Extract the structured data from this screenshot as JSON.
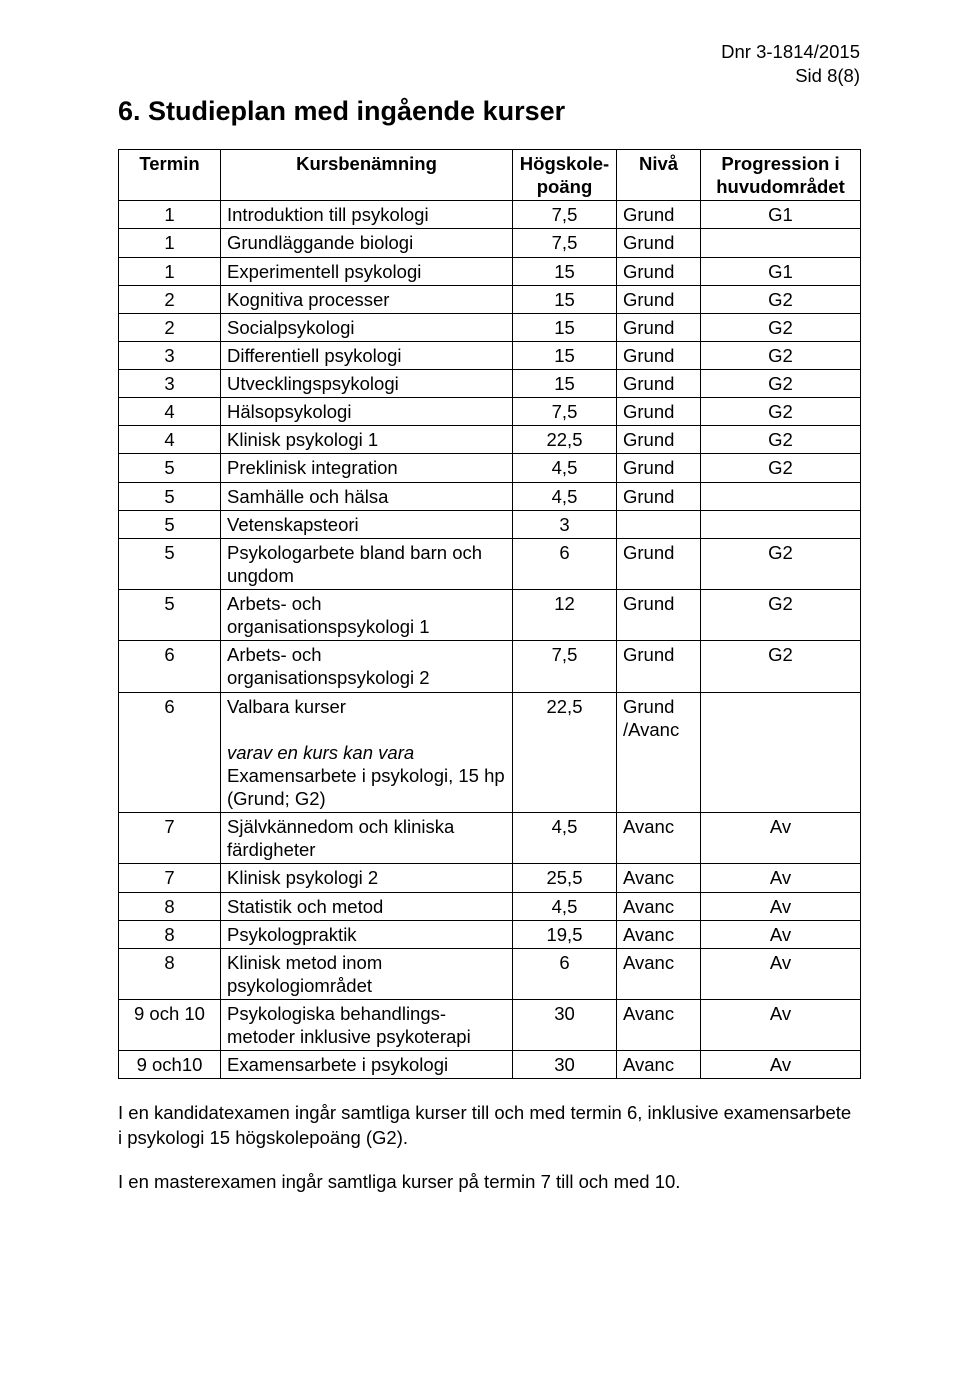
{
  "header": {
    "dnr": "Dnr 3-1814/2015",
    "page": "Sid 8(8)"
  },
  "heading": "6. Studieplan med ingående kurser",
  "table": {
    "columns": {
      "termin": "Termin",
      "kurs": "Kursbenämning",
      "hp_l1": "Högskole-",
      "hp_l2": "poäng",
      "niva": "Nivå",
      "prog_l1": "Progression i",
      "prog_l2": "huvudområdet"
    },
    "rows": [
      {
        "t": "1",
        "k": "Introduktion till psykologi",
        "hp": "7,5",
        "n": "Grund",
        "p": "G1"
      },
      {
        "t": "1",
        "k": "Grundläggande biologi",
        "hp": "7,5",
        "n": "Grund",
        "p": ""
      },
      {
        "t": "1",
        "k": "Experimentell psykologi",
        "hp": "15",
        "n": "Grund",
        "p": "G1"
      },
      {
        "t": "2",
        "k": "Kognitiva processer",
        "hp": "15",
        "n": "Grund",
        "p": "G2"
      },
      {
        "t": "2",
        "k": "Socialpsykologi",
        "hp": "15",
        "n": "Grund",
        "p": "G2"
      },
      {
        "t": "3",
        "k": "Differentiell psykologi",
        "hp": "15",
        "n": "Grund",
        "p": "G2"
      },
      {
        "t": "3",
        "k": "Utvecklingspsykologi",
        "hp": "15",
        "n": "Grund",
        "p": "G2"
      },
      {
        "t": "4",
        "k": "Hälsopsykologi",
        "hp": "7,5",
        "n": "Grund",
        "p": "G2"
      },
      {
        "t": "4",
        "k": "Klinisk psykologi 1",
        "hp": "22,5",
        "n": "Grund",
        "p": "G2"
      },
      {
        "t": "5",
        "k": "Preklinisk integration",
        "hp": "4,5",
        "n": "Grund",
        "p": "G2"
      },
      {
        "t": "5",
        "k": "Samhälle och hälsa",
        "hp": "4,5",
        "n": "Grund",
        "p": ""
      },
      {
        "t": "5",
        "k": "Vetenskapsteori",
        "hp": "3",
        "n": "",
        "p": ""
      },
      {
        "t": "5",
        "k": "Psykologarbete bland barn och ungdom",
        "hp": "6",
        "n": "Grund",
        "p": "G2"
      },
      {
        "t": "5",
        "k": "Arbets- och organisationspsykologi 1",
        "hp": "12",
        "n": "Grund",
        "p": "G2"
      },
      {
        "t": "6",
        "k": "Arbets- och organisationspsykologi 2",
        "hp": "7,5",
        "n": "Grund",
        "p": "G2"
      },
      {
        "t": "6",
        "k_main": "Valbara kurser",
        "k_sub_l1": "varav en kurs kan vara",
        "k_sub_l2": "Examensarbete i psykologi, 15 hp (Grund; G2)",
        "hp": "22,5",
        "n_l1": "Grund",
        "n_l2": "/Avanc",
        "p": ""
      },
      {
        "t": "7",
        "k": "Självkännedom och kliniska färdigheter",
        "hp": "4,5",
        "n": "Avanc",
        "p": "Av"
      },
      {
        "t": "7",
        "k": "Klinisk psykologi 2",
        "hp": "25,5",
        "n": "Avanc",
        "p": "Av"
      },
      {
        "t": "8",
        "k": "Statistik och metod",
        "hp": "4,5",
        "n": "Avanc",
        "p": "Av"
      },
      {
        "t": "8",
        "k": "Psykologpraktik",
        "hp": "19,5",
        "n": "Avanc",
        "p": "Av"
      },
      {
        "t": "8",
        "k": "Klinisk metod inom psykologiområdet",
        "hp": "6",
        "n": "Avanc",
        "p": "Av"
      },
      {
        "t": "9 och 10",
        "k": "Psykologiska behandlings-metoder inklusive psykoterapi",
        "hp": "30",
        "n": "Avanc",
        "p": "Av"
      },
      {
        "t": "9 och10",
        "k": "Examensarbete i psykologi",
        "hp": "30",
        "n": "Avanc",
        "p": "Av"
      }
    ]
  },
  "paragraphs": {
    "p1": "I en kandidatexamen ingår samtliga kurser till och med termin 6, inklusive examensarbete i psykologi 15 högskolepoäng (G2).",
    "p2": "I en masterexamen ingår samtliga kurser på termin 7 till och med 10."
  }
}
